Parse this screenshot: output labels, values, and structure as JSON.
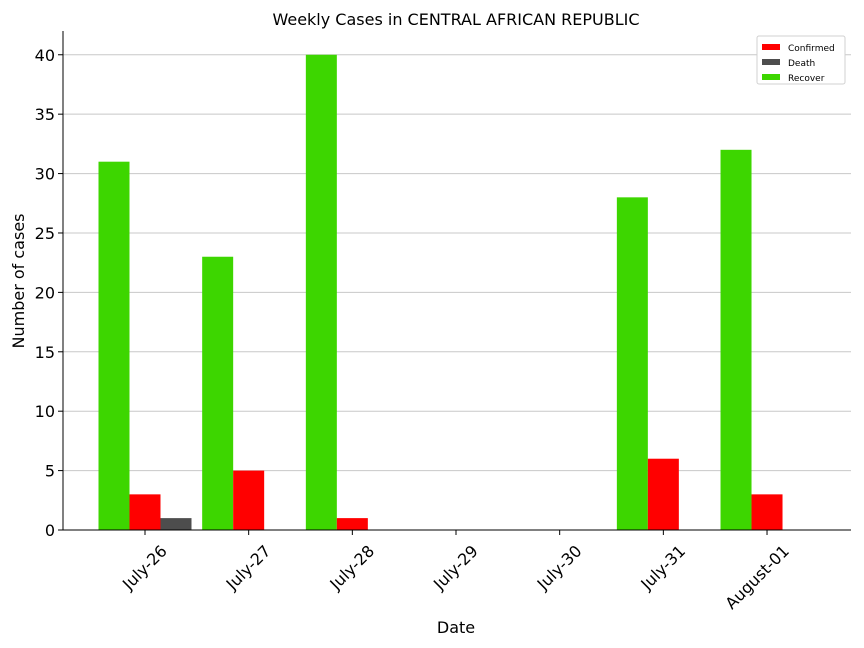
{
  "chart_data": {
    "type": "bar",
    "title": "Weekly Cases in CENTRAL AFRICAN REPUBLIC",
    "xlabel": "Date",
    "ylabel": "Number of cases",
    "categories": [
      "July-26",
      "July-27",
      "July-28",
      "July-29",
      "July-30",
      "July-31",
      "August-01"
    ],
    "ylim": [
      0,
      42
    ],
    "yticks": [
      0,
      5,
      10,
      15,
      20,
      25,
      30,
      35,
      40
    ],
    "grid": "horizontal",
    "legend_position": "top-right",
    "series": [
      {
        "name": "Recover",
        "color": "#3dd600",
        "values": [
          31,
          23,
          40,
          0,
          0,
          28,
          32
        ]
      },
      {
        "name": "Confirmed",
        "color": "#ff0000",
        "values": [
          3,
          5,
          1,
          0,
          0,
          6,
          3
        ]
      },
      {
        "name": "Death",
        "color": "#4d4d4d",
        "values": [
          1,
          0,
          0,
          0,
          0,
          0,
          0
        ]
      }
    ],
    "legend_order": [
      "Confirmed",
      "Death",
      "Recover"
    ]
  }
}
